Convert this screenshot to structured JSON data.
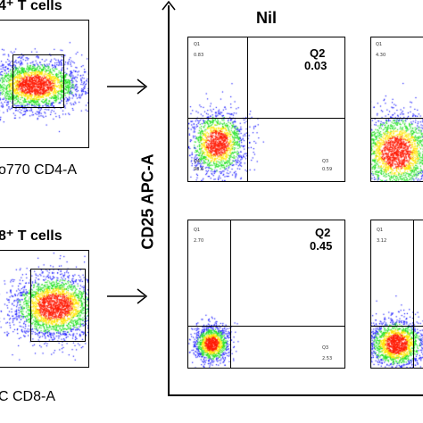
{
  "left_panels": {
    "cd4_title": "4⁺ T cells",
    "cd4_axis": "o770 CD4-A",
    "cd8_title": "8⁺ T cells",
    "cd8_axis": "C CD8-A"
  },
  "header": {
    "nil_label": "Nil"
  },
  "y_axis_label": "CD25 APC-A",
  "chart_data": [
    {
      "type": "scatter",
      "title": "Nil",
      "row": "CD4+ T cells",
      "quadrants": {
        "Q1": "0.83",
        "Q2": "0.03",
        "Q3": "0.59",
        "Q4": "98.6"
      },
      "labels": {
        "q1": "Q1",
        "q1_value": "0.83",
        "q2": "Q2",
        "q2_value": "0.03",
        "q3": "Q3",
        "q3_value": "0.59",
        "q4": "Q4",
        "q4_value": "98.6"
      }
    },
    {
      "type": "scatter",
      "row": "CD4+ T cells",
      "quadrants": {
        "Q1": "4.30"
      },
      "labels": {
        "q1": "Q1",
        "q1_value": "4.30"
      }
    },
    {
      "type": "scatter",
      "row": "CD8+ T cells",
      "quadrants": {
        "Q1": "2.70",
        "Q2": "0.45",
        "Q3": "2.53"
      },
      "labels": {
        "q1": "Q1",
        "q1_value": "2.70",
        "q2": "Q2",
        "q2_value": "0.45",
        "q3": "Q3",
        "q3_value": "2.53"
      }
    },
    {
      "type": "scatter",
      "row": "CD8+ T cells",
      "quadrants": {
        "Q1": "3.12"
      },
      "labels": {
        "q1": "Q1",
        "q1_value": "3.12"
      }
    }
  ],
  "colors": {
    "low": "#1b1bff",
    "mid": "#1ee01e",
    "high": "#ffe600",
    "peak": "#ff1a00",
    "frame": "#000000"
  }
}
